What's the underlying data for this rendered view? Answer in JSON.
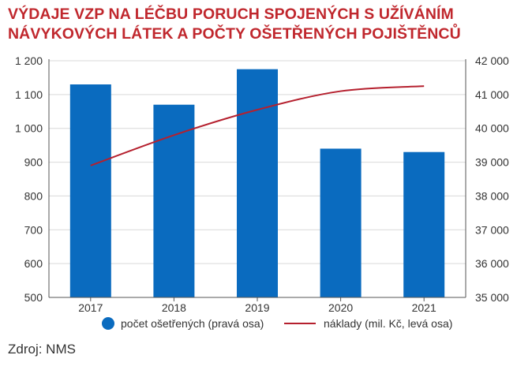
{
  "title": {
    "line1": "VÝDAJE VZP NA LÉČBU PORUCH SPOJENÝCH S UŽÍVÁNÍM",
    "line2": "NÁVYKOVÝCH LÁTEK A POČTY OŠETŘENÝCH POJIŠTĚNCŮ"
  },
  "source": "Zdroj: NMS",
  "colors": {
    "bar": "#0a6bbf",
    "line": "#b5202e",
    "title": "#c0272d",
    "grid": "#d9d9d9"
  },
  "chart_data": {
    "type": "bar",
    "title": "VÝDAJE VZP NA LÉČBU PORUCH SPOJENÝCH S UŽÍVÁNÍM NÁVYKOVÝCH LÁTEK A POČTY OŠETŘENÝCH POJIŠTĚNCŮ",
    "categories": [
      "2017",
      "2018",
      "2019",
      "2020",
      "2021"
    ],
    "series": [
      {
        "name": "počet ošetřených (pravá osa)",
        "type": "bar",
        "axis": "right",
        "values": [
          41300,
          40700,
          41750,
          39400,
          39300
        ]
      },
      {
        "name": "náklady (mil. Kč, levá osa)",
        "type": "line",
        "axis": "left",
        "values": [
          890,
          980,
          1055,
          1110,
          1125
        ]
      }
    ],
    "left_axis": {
      "ylim": [
        500,
        1200
      ],
      "ticks": [
        "500",
        "600",
        "700",
        "800",
        "900",
        "1 000",
        "1 100",
        "1 200"
      ]
    },
    "right_axis": {
      "ylim": [
        35000,
        42000
      ],
      "ticks": [
        "35 000",
        "36 000",
        "37 000",
        "38 000",
        "39 000",
        "40 000",
        "41 000",
        "42 000"
      ]
    },
    "grid": true,
    "legend_position": "bottom"
  }
}
